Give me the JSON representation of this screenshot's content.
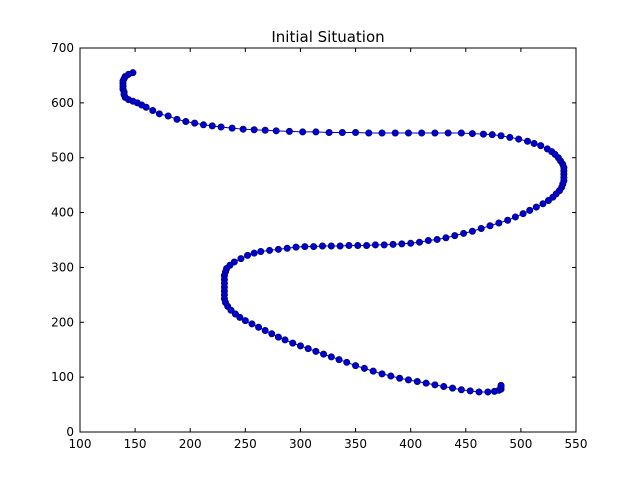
{
  "chart_data": {
    "type": "line",
    "title": "Initial Situation",
    "xlabel": "",
    "ylabel": "",
    "xlim": [
      100,
      550
    ],
    "ylim": [
      0,
      700
    ],
    "xticks": [
      100,
      150,
      200,
      250,
      300,
      350,
      400,
      450,
      500,
      550
    ],
    "yticks": [
      0,
      100,
      200,
      300,
      400,
      500,
      600,
      700
    ],
    "grid": false,
    "legend": "none",
    "series": [
      {
        "color": "#0000cc",
        "marker": "circle",
        "points": [
          [
            148,
            655
          ],
          [
            144,
            652
          ],
          [
            141,
            648
          ],
          [
            140,
            644
          ],
          [
            139,
            640
          ],
          [
            139,
            635
          ],
          [
            139,
            630
          ],
          [
            139,
            625
          ],
          [
            140,
            620
          ],
          [
            140,
            615
          ],
          [
            141,
            610
          ],
          [
            144,
            606
          ],
          [
            148,
            603
          ],
          [
            152,
            600
          ],
          [
            156,
            596
          ],
          [
            160,
            592
          ],
          [
            166,
            586
          ],
          [
            172,
            580
          ],
          [
            180,
            576
          ],
          [
            188,
            570
          ],
          [
            196,
            566
          ],
          [
            204,
            563
          ],
          [
            212,
            560
          ],
          [
            220,
            558
          ],
          [
            228,
            556
          ],
          [
            238,
            554
          ],
          [
            248,
            552
          ],
          [
            258,
            551
          ],
          [
            268,
            550
          ],
          [
            278,
            549
          ],
          [
            290,
            548
          ],
          [
            302,
            547
          ],
          [
            314,
            547
          ],
          [
            326,
            546
          ],
          [
            338,
            546
          ],
          [
            350,
            546
          ],
          [
            362,
            545
          ],
          [
            374,
            545
          ],
          [
            386,
            545
          ],
          [
            398,
            545
          ],
          [
            410,
            545
          ],
          [
            422,
            545
          ],
          [
            434,
            545
          ],
          [
            446,
            545
          ],
          [
            456,
            544
          ],
          [
            466,
            543
          ],
          [
            474,
            542
          ],
          [
            482,
            540
          ],
          [
            490,
            537
          ],
          [
            498,
            534
          ],
          [
            506,
            530
          ],
          [
            512,
            526
          ],
          [
            518,
            522
          ],
          [
            524,
            516
          ],
          [
            528,
            511
          ],
          [
            531,
            506
          ],
          [
            534,
            500
          ],
          [
            536,
            494
          ],
          [
            538,
            488
          ],
          [
            539,
            482
          ],
          [
            539,
            476
          ],
          [
            539,
            470
          ],
          [
            539,
            464
          ],
          [
            539,
            458
          ],
          [
            538,
            452
          ],
          [
            537,
            446
          ],
          [
            535,
            440
          ],
          [
            532,
            434
          ],
          [
            529,
            428
          ],
          [
            525,
            422
          ],
          [
            520,
            416
          ],
          [
            514,
            410
          ],
          [
            508,
            404
          ],
          [
            502,
            398
          ],
          [
            495,
            392
          ],
          [
            488,
            386
          ],
          [
            480,
            381
          ],
          [
            472,
            376
          ],
          [
            464,
            371
          ],
          [
            456,
            366
          ],
          [
            448,
            362
          ],
          [
            440,
            358
          ],
          [
            432,
            354
          ],
          [
            424,
            351
          ],
          [
            416,
            349
          ],
          [
            408,
            346
          ],
          [
            400,
            344
          ],
          [
            392,
            343
          ],
          [
            384,
            342
          ],
          [
            376,
            341
          ],
          [
            368,
            341
          ],
          [
            360,
            340
          ],
          [
            352,
            340
          ],
          [
            344,
            340
          ],
          [
            336,
            339
          ],
          [
            328,
            339
          ],
          [
            320,
            339
          ],
          [
            312,
            338
          ],
          [
            304,
            338
          ],
          [
            296,
            337
          ],
          [
            288,
            335
          ],
          [
            280,
            333
          ],
          [
            272,
            331
          ],
          [
            264,
            329
          ],
          [
            258,
            326
          ],
          [
            252,
            322
          ],
          [
            246,
            316
          ],
          [
            240,
            310
          ],
          [
            236,
            304
          ],
          [
            233,
            298
          ],
          [
            232,
            292
          ],
          [
            231,
            285
          ],
          [
            231,
            278
          ],
          [
            231,
            271
          ],
          [
            231,
            264
          ],
          [
            231,
            257
          ],
          [
            231,
            250
          ],
          [
            231,
            243
          ],
          [
            232,
            236
          ],
          [
            234,
            229
          ],
          [
            237,
            222
          ],
          [
            241,
            215
          ],
          [
            245,
            209
          ],
          [
            250,
            203
          ],
          [
            256,
            197
          ],
          [
            262,
            191
          ],
          [
            268,
            185
          ],
          [
            274,
            179
          ],
          [
            280,
            173
          ],
          [
            286,
            168
          ],
          [
            293,
            162
          ],
          [
            300,
            157
          ],
          [
            307,
            152
          ],
          [
            314,
            147
          ],
          [
            321,
            142
          ],
          [
            328,
            137
          ],
          [
            335,
            132
          ],
          [
            342,
            127
          ],
          [
            350,
            121
          ],
          [
            358,
            116
          ],
          [
            366,
            111
          ],
          [
            374,
            106
          ],
          [
            382,
            102
          ],
          [
            390,
            98
          ],
          [
            398,
            95
          ],
          [
            406,
            92
          ],
          [
            414,
            89
          ],
          [
            422,
            86
          ],
          [
            430,
            83
          ],
          [
            438,
            80
          ],
          [
            446,
            77
          ],
          [
            454,
            75
          ],
          [
            462,
            73
          ],
          [
            470,
            73
          ],
          [
            476,
            74
          ],
          [
            480,
            76
          ],
          [
            482,
            78
          ],
          [
            482,
            82
          ],
          [
            482,
            85
          ]
        ]
      }
    ]
  }
}
